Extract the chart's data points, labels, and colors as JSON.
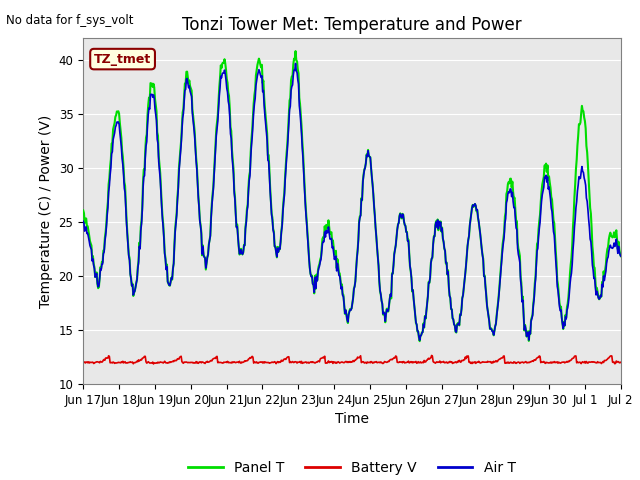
{
  "title": "Tonzi Tower Met: Temperature and Power",
  "top_left_text": "No data for f_sys_volt",
  "ylabel": "Temperature (C) / Power (V)",
  "xlabel": "Time",
  "annotation_label": "TZ_tmet",
  "ylim": [
    10,
    42
  ],
  "yticks": [
    10,
    15,
    20,
    25,
    30,
    35,
    40
  ],
  "x_tick_labels": [
    "Jun 17",
    "Jun 18",
    "Jun 19",
    "Jun 20",
    "Jun 21",
    "Jun 22",
    "Jun 23",
    "Jun 24",
    "Jun 25",
    "Jun 26",
    "Jun 27",
    "Jun 28",
    "Jun 29",
    "Jun 30",
    "Jul 1",
    "Jul 2"
  ],
  "panel_color": "#00dd00",
  "battery_color": "#dd0000",
  "air_color": "#0000cc",
  "bg_color": "#e8e8e8",
  "legend_entries": [
    "Panel T",
    "Battery V",
    "Air T"
  ],
  "title_fontsize": 12,
  "label_fontsize": 10,
  "tick_fontsize": 8.5
}
